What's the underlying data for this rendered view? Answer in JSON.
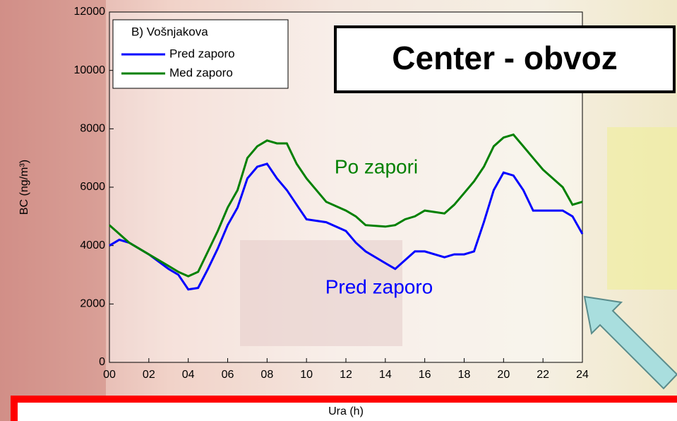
{
  "chart_data": {
    "type": "line",
    "title": "Center - obvoz",
    "legend_title": "B) Vošnjakova",
    "x_label": "Ura (h)",
    "y_label": "BC (ng/m³)",
    "annotations": [
      "Po zapori",
      "Pred zaporo"
    ],
    "x": [
      0,
      0.5,
      1,
      2,
      3,
      3.5,
      4,
      4.5,
      5,
      5.5,
      6,
      6.5,
      7,
      7.5,
      8,
      8.5,
      9,
      9.5,
      10,
      11,
      12,
      12.5,
      13,
      14,
      14.5,
      15,
      15.5,
      16,
      17,
      17.5,
      18,
      18.5,
      19,
      19.5,
      20,
      20.5,
      21,
      21.5,
      22,
      23,
      23.5,
      24
    ],
    "series": [
      {
        "name": "Pred zaporo",
        "color": "#0000ff",
        "values": [
          4000,
          4200,
          4100,
          3700,
          3200,
          3000,
          2500,
          2550,
          3200,
          3900,
          4700,
          5300,
          6300,
          6700,
          6800,
          6300,
          5900,
          5400,
          4900,
          4800,
          4500,
          4100,
          3800,
          3400,
          3200,
          3500,
          3800,
          3800,
          3600,
          3700,
          3700,
          3800,
          4800,
          5900,
          6500,
          6400,
          5900,
          5200,
          5200,
          5200,
          5000,
          4400
        ]
      },
      {
        "name": "Med zaporo",
        "color": "#008000",
        "values": [
          4700,
          4400,
          4100,
          3700,
          3300,
          3100,
          2950,
          3100,
          3800,
          4500,
          5300,
          5900,
          7000,
          7400,
          7600,
          7500,
          7500,
          6800,
          6300,
          5500,
          5200,
          5000,
          4700,
          4650,
          4700,
          4900,
          5000,
          5200,
          5100,
          5400,
          5800,
          6200,
          6700,
          7400,
          7700,
          7800,
          7400,
          7000,
          6600,
          6000,
          5400,
          5500
        ]
      }
    ],
    "xlim": [
      0,
      24
    ],
    "xticks": [
      {
        "value": 0,
        "label": "00"
      },
      {
        "value": 2,
        "label": "02"
      },
      {
        "value": 4,
        "label": "04"
      },
      {
        "value": 6,
        "label": "06"
      },
      {
        "value": 8,
        "label": "08"
      },
      10,
      12,
      14,
      16,
      18,
      20,
      22,
      24
    ],
    "ylim": [
      0,
      12000
    ],
    "yticks": [
      0,
      2000,
      4000,
      6000,
      8000,
      10000,
      12000
    ]
  }
}
